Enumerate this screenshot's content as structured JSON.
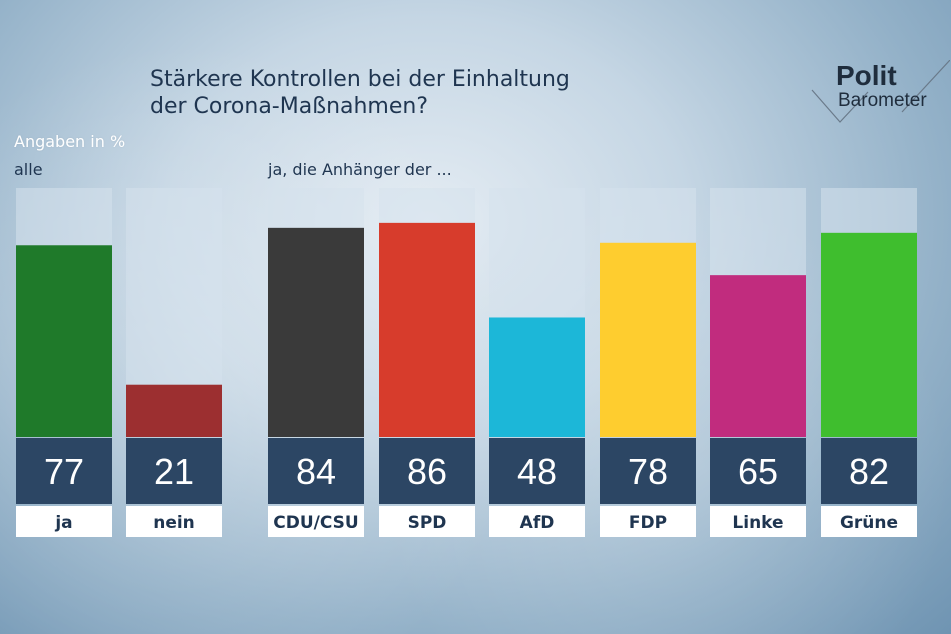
{
  "title_lines": [
    "Stärkere Kontrollen bei der Einhaltung",
    "der Corona-Maßnahmen?"
  ],
  "logo": {
    "line1": "Polit",
    "line2": "Barometer"
  },
  "subtitle": "Angaben in %",
  "colors": {
    "track": "#d6e2ec",
    "value_bg": "#2c4664",
    "value_text": "#ffffff",
    "label_bg": "#ffffff",
    "label_text": "#1f3550"
  },
  "chart_data": [
    {
      "type": "bar",
      "group_label": "alle",
      "categories": [
        "ja",
        "nein"
      ],
      "values": [
        77,
        21
      ],
      "colors": [
        "#1f7a2a",
        "#9c2f30"
      ],
      "ylim": [
        0,
        100
      ]
    },
    {
      "type": "bar",
      "group_label": "ja, die Anhänger der ...",
      "categories": [
        "CDU/CSU",
        "SPD",
        "AfD",
        "FDP",
        "Linke",
        "Grüne"
      ],
      "values": [
        84,
        86,
        48,
        78,
        65,
        82
      ],
      "colors": [
        "#3a3a3a",
        "#d73c2c",
        "#1cb7d8",
        "#fecd2f",
        "#c12c7e",
        "#3fbe2e"
      ],
      "ylim": [
        0,
        100
      ]
    }
  ]
}
